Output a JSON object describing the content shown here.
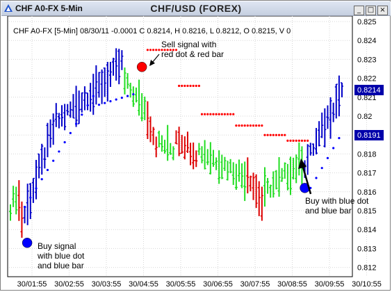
{
  "window": {
    "title_left": "CHF A0-FX 5-Min",
    "title_center": "CHF/USD (FOREX)",
    "buttons": [
      "_",
      "□",
      "×"
    ]
  },
  "header_line": "CHF A0-FX [5-Min] 08/30/11  -0.0001 C 0.8214, H 0.8216, L 0.8212, O 0.8215, V 0",
  "price_tags": {
    "last": "0.8214",
    "stop": "0.8191"
  },
  "annotations": {
    "sell": [
      "Sell signal with",
      "red dot & red bar"
    ],
    "buy_left": [
      "Buy signal",
      "with blue dot",
      "and blue bar"
    ],
    "buy_right": [
      "Buy with blue dot",
      "and blue bar"
    ]
  },
  "colors": {
    "up_bar": "#0000c8",
    "down_bar": "#dd0000",
    "neutral_bar": "#22dd22",
    "buy_dot": "#0000ff",
    "sell_dot": "#ff0000",
    "tag_bg": "#0000aa"
  },
  "chart_data": {
    "type": "ohlc",
    "y_ticks": [
      "0.825",
      "0.824",
      "0.823",
      "0.822",
      "0.821",
      "0.82",
      "0.819",
      "0.818",
      "0.817",
      "0.816",
      "0.815",
      "0.814",
      "0.813",
      "0.812"
    ],
    "y_tick_values": [
      0.825,
      0.824,
      0.823,
      0.822,
      0.821,
      0.82,
      0.819,
      0.818,
      0.817,
      0.816,
      0.815,
      0.814,
      0.813,
      0.812
    ],
    "ylim": [
      0.812,
      0.8252
    ],
    "x_ticks": [
      "30/01:55",
      "30/02:55",
      "30/03:55",
      "30/04:55",
      "30/05:55",
      "30/06:55",
      "30/07:55",
      "30/08:55",
      "30/09:55",
      "30/10:55"
    ],
    "bar_count": 117,
    "segments": [
      {
        "color": "neutral",
        "bars": 3,
        "from": 0.8152,
        "to": 0.8158
      },
      {
        "color": "down",
        "bars": 2,
        "from": 0.8155,
        "to": 0.8146
      },
      {
        "color": "up",
        "bars": 12,
        "from": 0.8148,
        "to": 0.8198
      },
      {
        "color": "up",
        "bars": 12,
        "from": 0.8198,
        "to": 0.8212
      },
      {
        "color": "up",
        "bars": 11,
        "from": 0.8212,
        "to": 0.8228
      },
      {
        "color": "neutral",
        "bars": 8,
        "from": 0.8218,
        "to": 0.8204
      },
      {
        "color": "down",
        "bars": 4,
        "from": 0.82,
        "to": 0.8186
      },
      {
        "color": "neutral",
        "bars": 6,
        "from": 0.8186,
        "to": 0.8182
      },
      {
        "color": "down",
        "bars": 8,
        "from": 0.819,
        "to": 0.818
      },
      {
        "color": "neutral",
        "bars": 17,
        "from": 0.8182,
        "to": 0.8168
      },
      {
        "color": "down",
        "bars": 6,
        "from": 0.817,
        "to": 0.8154
      },
      {
        "color": "neutral",
        "bars": 14,
        "from": 0.816,
        "to": 0.8176
      },
      {
        "color": "up",
        "bars": 14,
        "from": 0.8174,
        "to": 0.8214
      }
    ],
    "sell_dots": [
      {
        "from_bar": 48,
        "to_bar": 58,
        "value": 0.8235
      },
      {
        "from_bar": 59,
        "to_bar": 66,
        "value": 0.8216
      },
      {
        "from_bar": 67,
        "to_bar": 78,
        "value": 0.8201
      },
      {
        "from_bar": 79,
        "to_bar": 88,
        "value": 0.8195
      },
      {
        "from_bar": 89,
        "to_bar": 96,
        "value": 0.819
      },
      {
        "from_bar": 97,
        "to_bar": 104,
        "value": 0.8187
      }
    ],
    "buy_dots": [
      {
        "from_bar": 5,
        "to_bar": 30,
        "from_value": 0.8152,
        "to_value": 0.8213
      },
      {
        "from_bar": 31,
        "to_bar": 44,
        "from_value": 0.8206,
        "to_value": 0.8212
      },
      {
        "from_bar": 105,
        "to_bar": 116,
        "from_value": 0.8162,
        "to_value": 0.8191
      }
    ],
    "signals": [
      {
        "type": "sell",
        "bar": 46,
        "value": 0.8226
      },
      {
        "type": "buy",
        "bar": 1,
        "value": 0.8133
      },
      {
        "type": "buy",
        "bar": 103,
        "value": 0.8162
      }
    ]
  }
}
